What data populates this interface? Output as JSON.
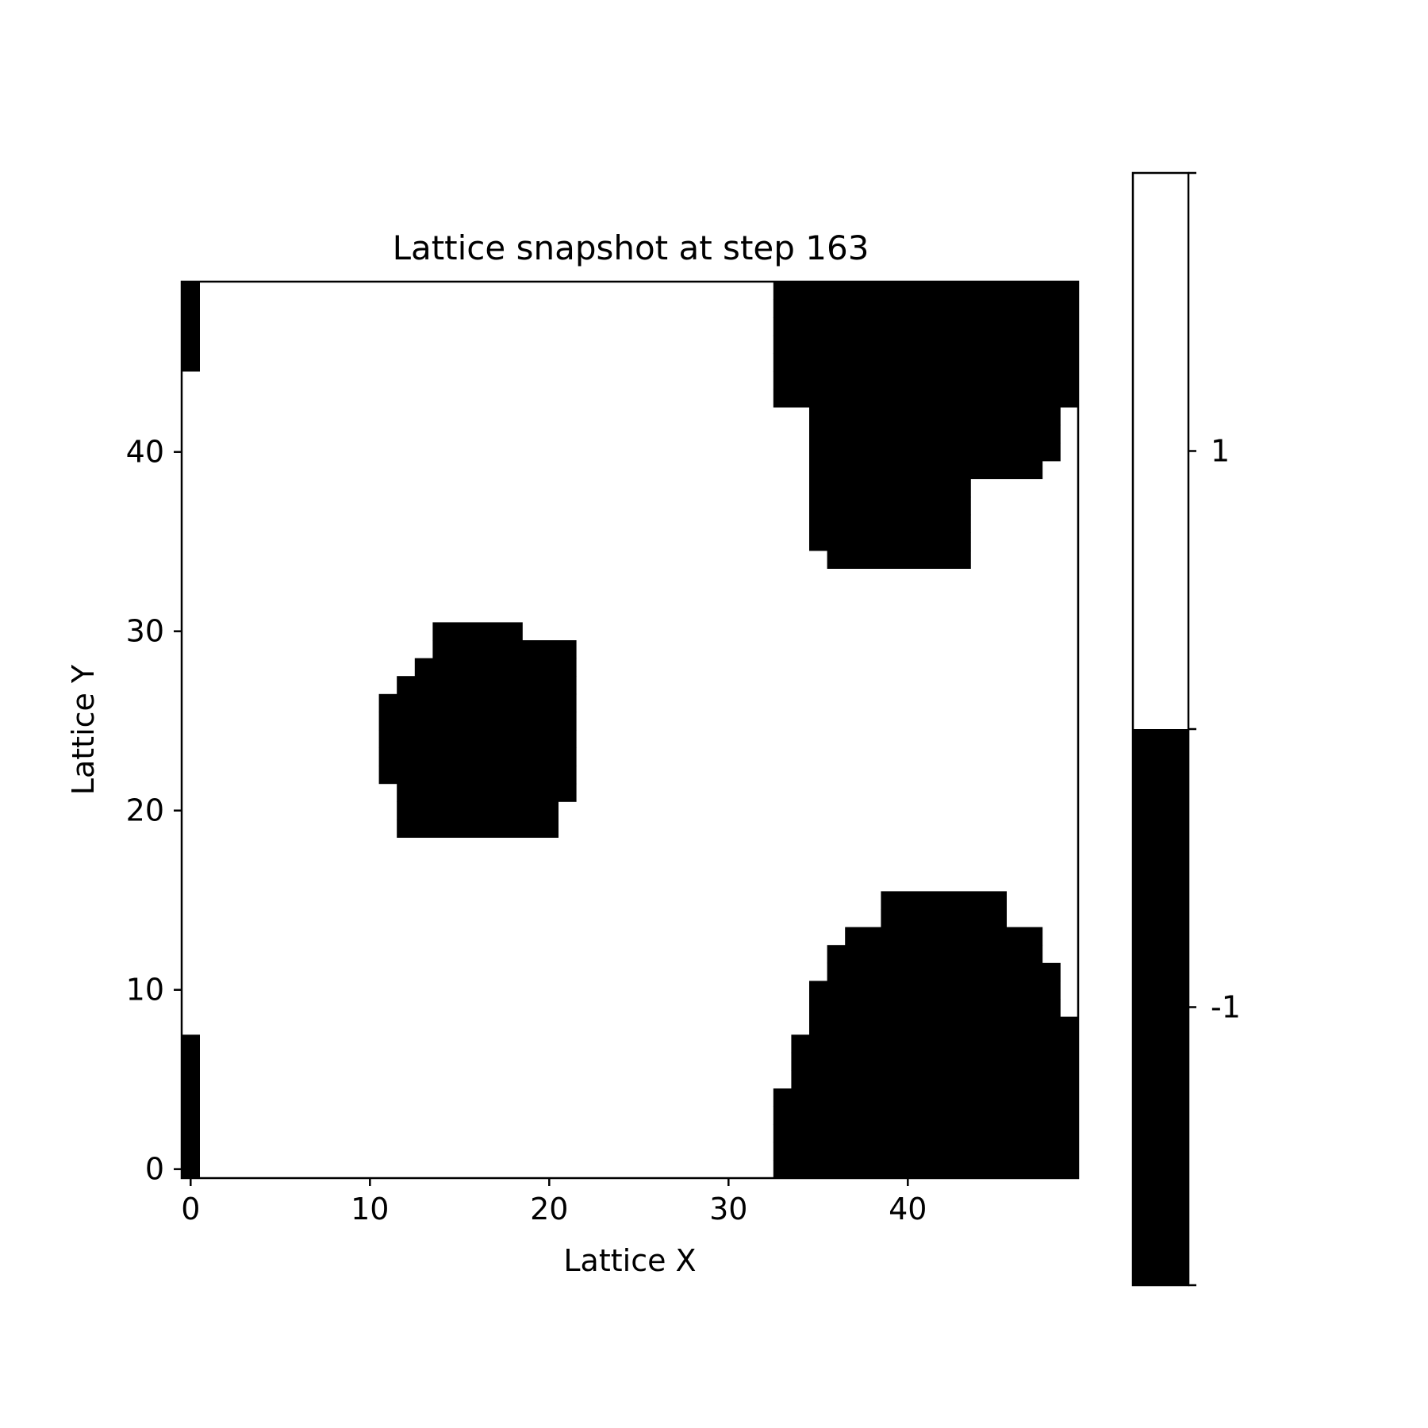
{
  "chart_data": {
    "type": "heatmap",
    "title": "Lattice snapshot at step 163",
    "xlabel": "Lattice X",
    "ylabel": "Lattice Y",
    "xlim": [
      -0.5,
      49.5
    ],
    "ylim": [
      -0.5,
      49.5
    ],
    "xticks": [
      0,
      10,
      20,
      30,
      40
    ],
    "yticks": [
      0,
      10,
      20,
      30,
      40
    ],
    "grid": false,
    "colormap": {
      "-1": "#000000",
      "1": "#ffffff"
    },
    "colorbar": {
      "ticks": [
        1,
        -1
      ],
      "tick_labels": [
        "1",
        "-1"
      ],
      "range": [
        -2,
        2
      ]
    },
    "cells": {
      "width": 50,
      "height": 50,
      "default_value": 1,
      "minus_one_runs": [
        {
          "y": 0,
          "runs": [
            [
              0,
              0
            ],
            [
              33,
              49
            ]
          ]
        },
        {
          "y": 1,
          "runs": [
            [
              0,
              0
            ],
            [
              33,
              49
            ]
          ]
        },
        {
          "y": 2,
          "runs": [
            [
              0,
              0
            ],
            [
              33,
              49
            ]
          ]
        },
        {
          "y": 3,
          "runs": [
            [
              0,
              0
            ],
            [
              33,
              49
            ]
          ]
        },
        {
          "y": 4,
          "runs": [
            [
              0,
              0
            ],
            [
              33,
              49
            ]
          ]
        },
        {
          "y": 5,
          "runs": [
            [
              0,
              0
            ],
            [
              34,
              49
            ]
          ]
        },
        {
          "y": 6,
          "runs": [
            [
              0,
              0
            ],
            [
              34,
              49
            ]
          ]
        },
        {
          "y": 7,
          "runs": [
            [
              0,
              0
            ],
            [
              34,
              49
            ]
          ]
        },
        {
          "y": 8,
          "runs": [
            [
              35,
              49
            ]
          ]
        },
        {
          "y": 9,
          "runs": [
            [
              35,
              48
            ]
          ]
        },
        {
          "y": 10,
          "runs": [
            [
              35,
              48
            ]
          ]
        },
        {
          "y": 11,
          "runs": [
            [
              36,
              48
            ]
          ]
        },
        {
          "y": 12,
          "runs": [
            [
              36,
              47
            ]
          ]
        },
        {
          "y": 13,
          "runs": [
            [
              37,
              47
            ]
          ]
        },
        {
          "y": 14,
          "runs": [
            [
              39,
              45
            ]
          ]
        },
        {
          "y": 15,
          "runs": [
            [
              39,
              45
            ]
          ]
        },
        {
          "y": 19,
          "runs": [
            [
              12,
              20
            ]
          ]
        },
        {
          "y": 20,
          "runs": [
            [
              12,
              20
            ]
          ]
        },
        {
          "y": 21,
          "runs": [
            [
              12,
              21
            ]
          ]
        },
        {
          "y": 22,
          "runs": [
            [
              11,
              21
            ]
          ]
        },
        {
          "y": 23,
          "runs": [
            [
              11,
              21
            ]
          ]
        },
        {
          "y": 24,
          "runs": [
            [
              11,
              21
            ]
          ]
        },
        {
          "y": 25,
          "runs": [
            [
              11,
              21
            ]
          ]
        },
        {
          "y": 26,
          "runs": [
            [
              11,
              21
            ]
          ]
        },
        {
          "y": 27,
          "runs": [
            [
              12,
              21
            ]
          ]
        },
        {
          "y": 28,
          "runs": [
            [
              13,
              21
            ]
          ]
        },
        {
          "y": 29,
          "runs": [
            [
              14,
              21
            ]
          ]
        },
        {
          "y": 30,
          "runs": [
            [
              14,
              18
            ]
          ]
        },
        {
          "y": 34,
          "runs": [
            [
              36,
              43
            ]
          ]
        },
        {
          "y": 35,
          "runs": [
            [
              35,
              43
            ]
          ]
        },
        {
          "y": 36,
          "runs": [
            [
              35,
              43
            ]
          ]
        },
        {
          "y": 37,
          "runs": [
            [
              35,
              43
            ]
          ]
        },
        {
          "y": 38,
          "runs": [
            [
              35,
              43
            ]
          ]
        },
        {
          "y": 39,
          "runs": [
            [
              35,
              47
            ]
          ]
        },
        {
          "y": 40,
          "runs": [
            [
              35,
              48
            ]
          ]
        },
        {
          "y": 41,
          "runs": [
            [
              35,
              48
            ]
          ]
        },
        {
          "y": 42,
          "runs": [
            [
              35,
              48
            ]
          ]
        },
        {
          "y": 43,
          "runs": [
            [
              33,
              49
            ]
          ]
        },
        {
          "y": 44,
          "runs": [
            [
              33,
              49
            ]
          ]
        },
        {
          "y": 45,
          "runs": [
            [
              0,
              0
            ],
            [
              33,
              49
            ]
          ]
        },
        {
          "y": 46,
          "runs": [
            [
              0,
              0
            ],
            [
              33,
              49
            ]
          ]
        },
        {
          "y": 47,
          "runs": [
            [
              0,
              0
            ],
            [
              33,
              49
            ]
          ]
        },
        {
          "y": 48,
          "runs": [
            [
              0,
              0
            ],
            [
              33,
              49
            ]
          ]
        },
        {
          "y": 49,
          "runs": [
            [
              0,
              0
            ],
            [
              33,
              49
            ]
          ]
        }
      ]
    }
  }
}
